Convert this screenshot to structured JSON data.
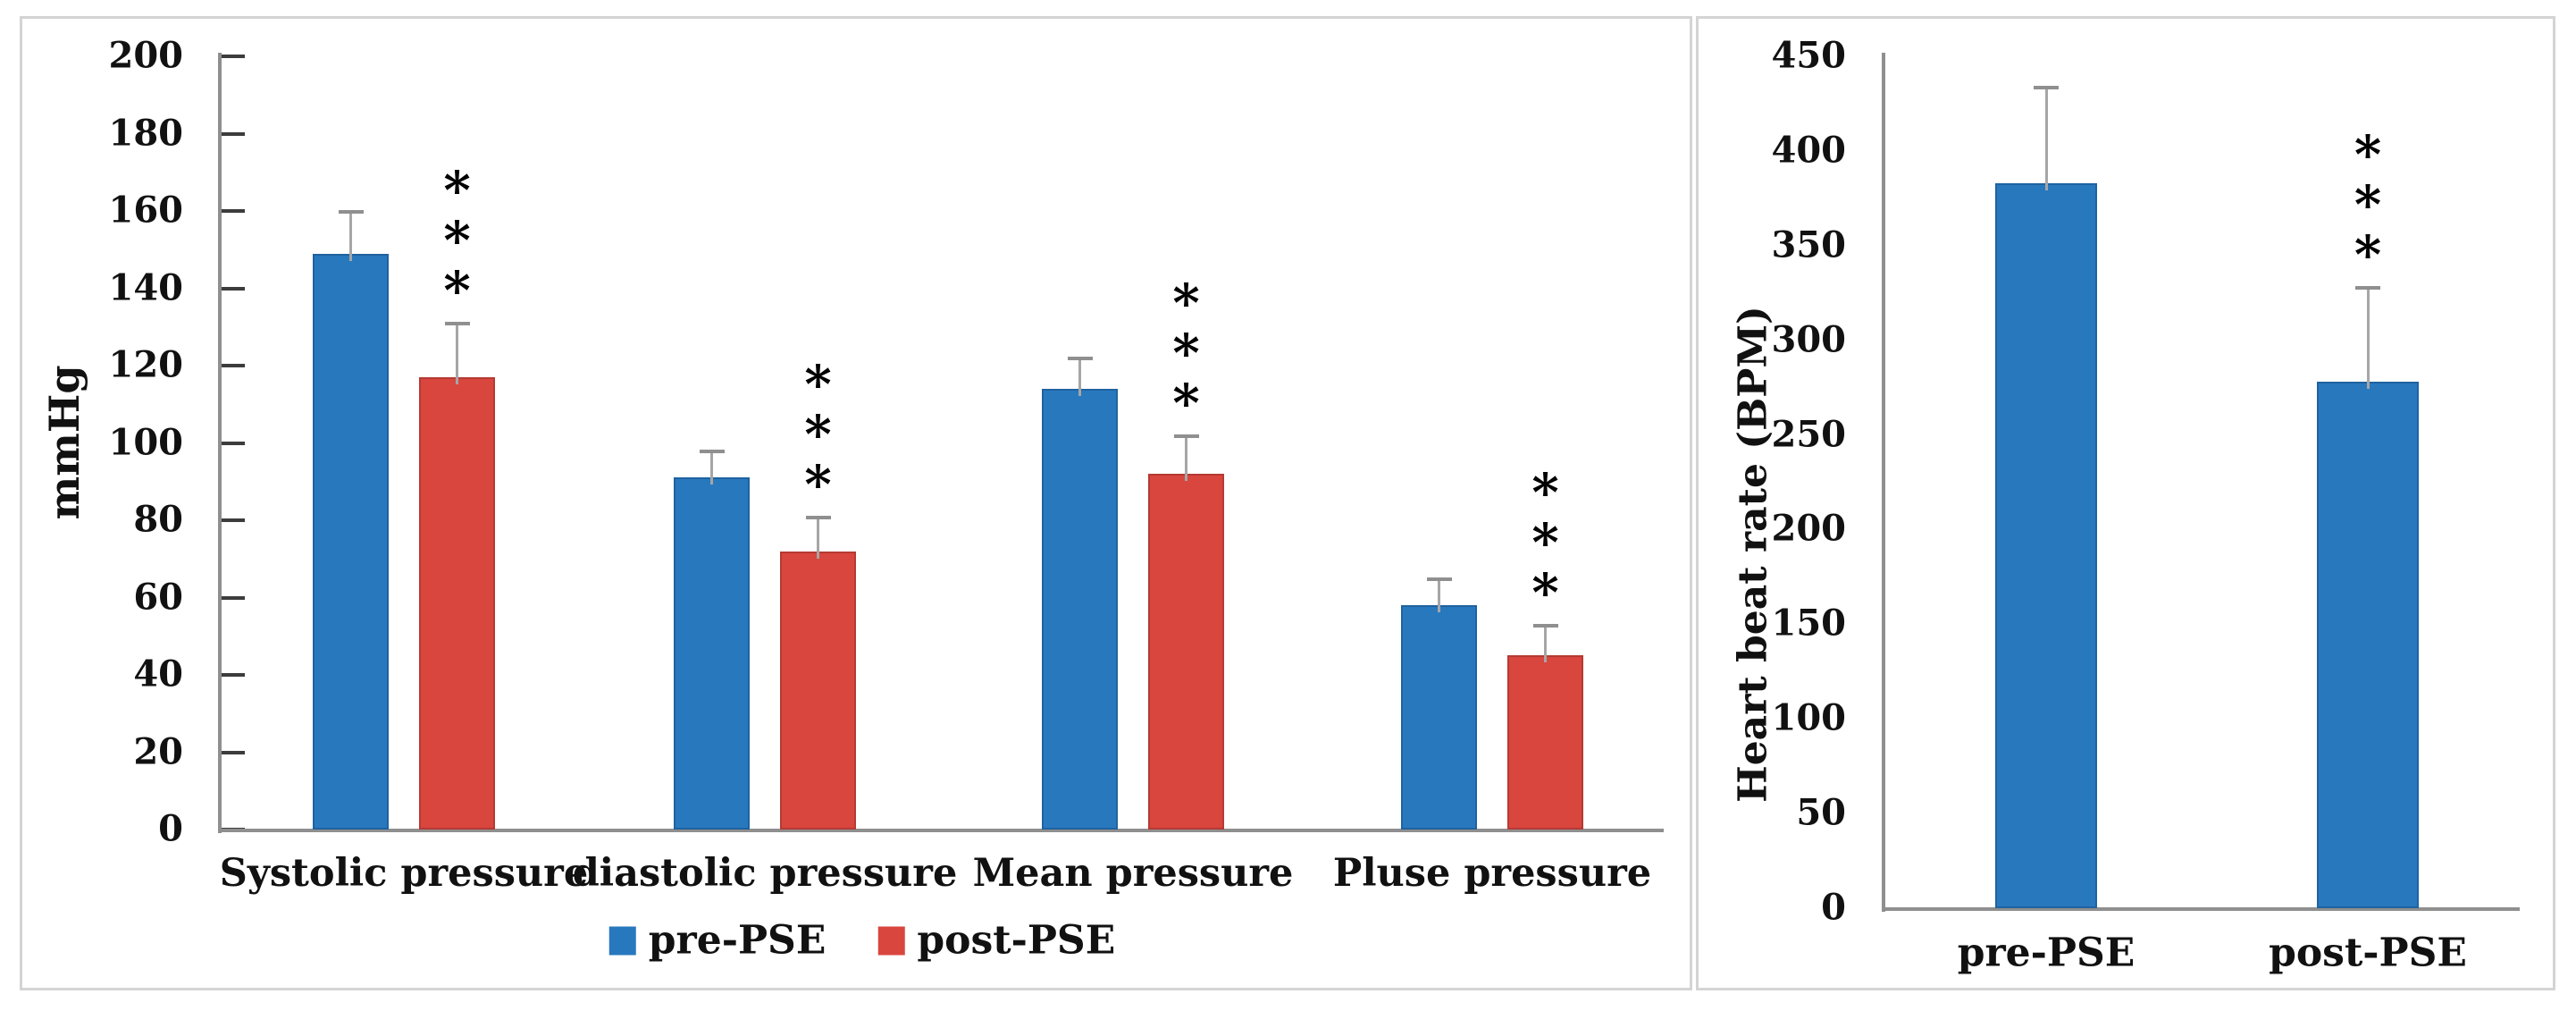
{
  "figure": {
    "description": "Two-panel bar chart figure comparing pre-PSE and post-PSE measurements",
    "border_color": "#d4d4d4",
    "background_color": "#ffffff",
    "significance_symbol": "***"
  },
  "chart_data": [
    {
      "type": "bar",
      "title": "",
      "xlabel": "",
      "ylabel": "mmHg",
      "ylim": [
        0,
        200
      ],
      "ytick_step": 20,
      "ytick_labels": [
        "0",
        "20",
        "40",
        "60",
        "80",
        "100",
        "120",
        "140",
        "160",
        "180",
        "200"
      ],
      "grid": false,
      "legend_position": "bottom",
      "categories": [
        "Systolic pressure",
        "diastolic pressure",
        "Mean pressure",
        "Pluse pressure"
      ],
      "series": [
        {
          "name": "pre-PSE",
          "color": "#2878BE",
          "edge_color": "#1f62a0",
          "values": [
            149,
            91,
            114,
            58
          ],
          "error_top": [
            160,
            98,
            122,
            65
          ],
          "significance": [
            "",
            "",
            "",
            ""
          ]
        },
        {
          "name": "post-PSE",
          "color": "#D8463E",
          "edge_color": "#b53a33",
          "values": [
            117,
            72,
            92,
            45
          ],
          "error_top": [
            131,
            81,
            102,
            53
          ],
          "significance": [
            "***",
            "***",
            "***",
            "***"
          ]
        }
      ]
    },
    {
      "type": "bar",
      "title": "",
      "xlabel": "",
      "ylabel": "Heart beat rate (BPM)",
      "ylim": [
        0,
        450
      ],
      "ytick_step": 50,
      "ytick_labels": [
        "0",
        "50",
        "100",
        "150",
        "200",
        "250",
        "300",
        "350",
        "400",
        "450"
      ],
      "grid": false,
      "legend_position": "none",
      "categories": [
        "pre-PSE",
        "post-PSE"
      ],
      "series": [
        {
          "name": "Heart beat rate",
          "color": "#2878BE",
          "edge_color": "#1f62a0",
          "values": [
            383,
            278
          ],
          "error_top": [
            434,
            328
          ],
          "significance": [
            "",
            "***"
          ]
        }
      ]
    }
  ]
}
